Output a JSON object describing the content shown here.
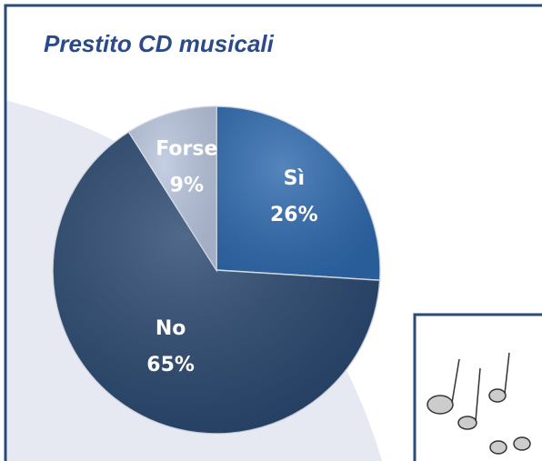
{
  "chart_data": {
    "type": "pie",
    "title": "Prestito CD musicali",
    "categories": [
      "Sì",
      "No",
      "Forse"
    ],
    "values": [
      26,
      65,
      9
    ],
    "value_labels": [
      "26%",
      "65%",
      "9%"
    ],
    "colors": [
      "#2f6aae",
      "#2a4870",
      "#b9c5de"
    ]
  }
}
